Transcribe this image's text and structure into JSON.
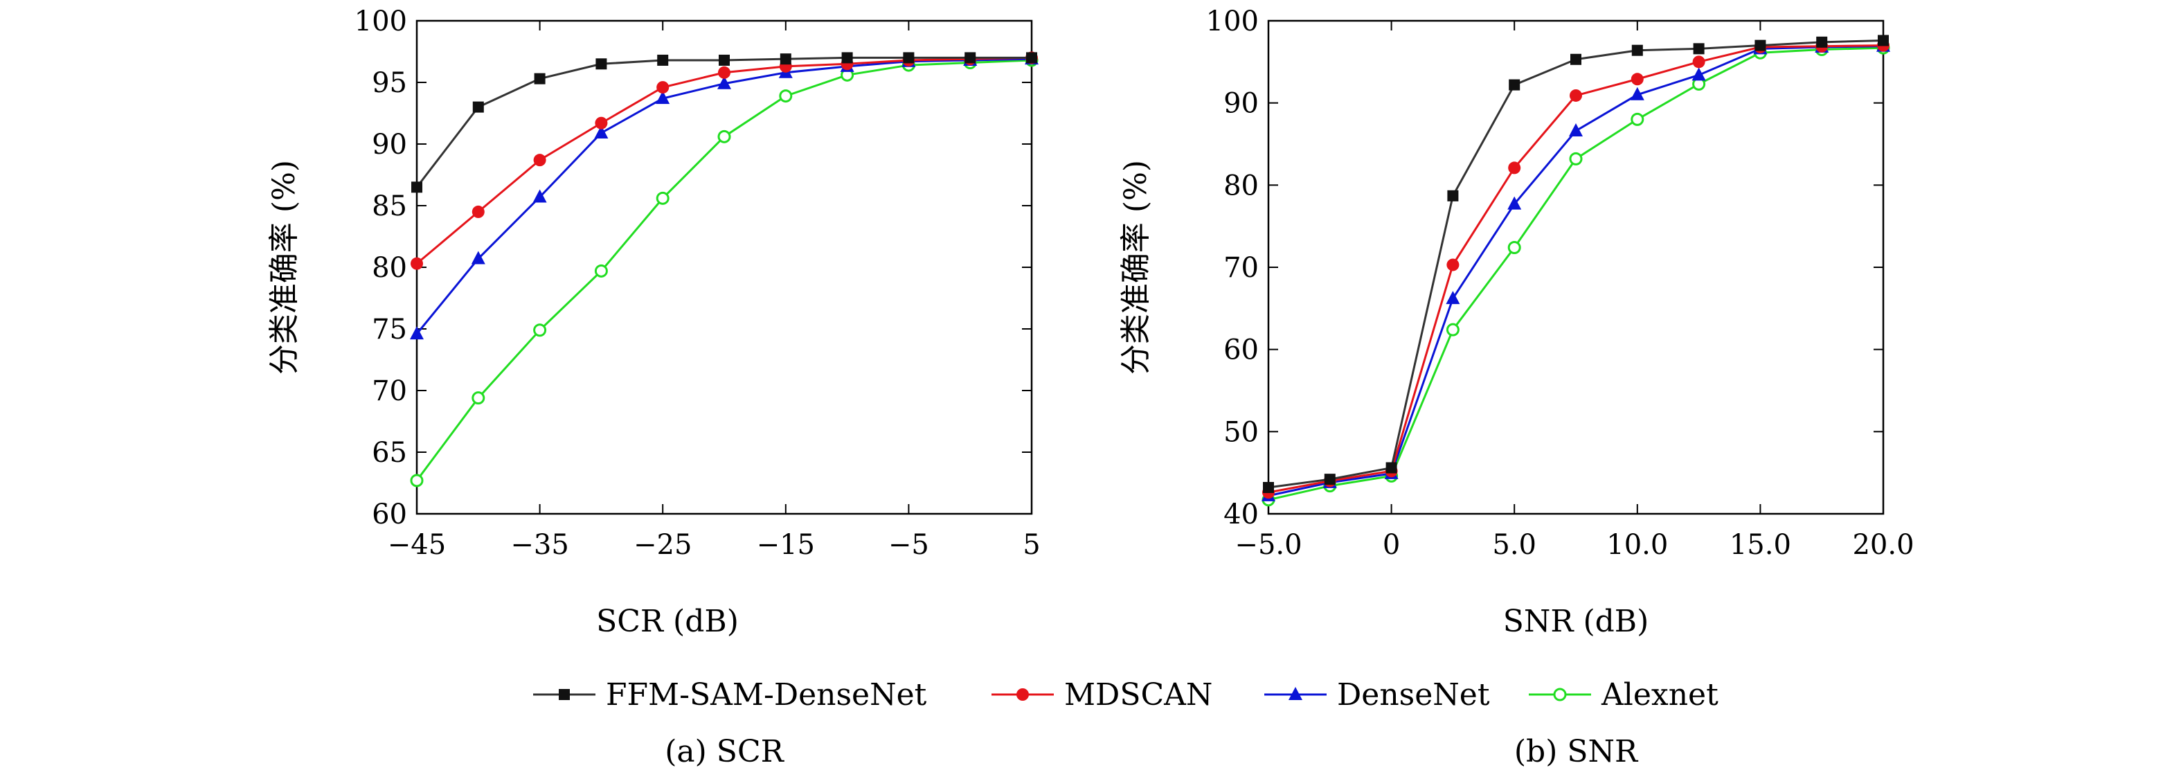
{
  "chart_data": [
    {
      "type": "line",
      "caption": "(a) SCR",
      "xlabel": "SCR (dB)",
      "ylabel": "分类准确率 (%)",
      "xlim": [
        -45,
        5
      ],
      "ylim": [
        60,
        100
      ],
      "xticks": [
        -45,
        -35,
        -25,
        -15,
        -5,
        5
      ],
      "xtick_labels": [
        "−45",
        "−35",
        "−25",
        "−15",
        "−5",
        "5"
      ],
      "yticks": [
        60,
        65,
        70,
        75,
        80,
        85,
        90,
        95,
        100
      ],
      "ytick_labels": [
        "60",
        "65",
        "70",
        "75",
        "80",
        "85",
        "90",
        "95",
        "100"
      ],
      "x": [
        -45,
        -40,
        -35,
        -30,
        -25,
        -20,
        -15,
        -10,
        -5,
        0,
        5
      ],
      "series": [
        {
          "name": "FFM-SAM-DenseNet",
          "values": [
            86.5,
            93.0,
            95.3,
            96.5,
            96.8,
            96.8,
            96.9,
            97.0,
            97.0,
            97.0,
            97.0
          ]
        },
        {
          "name": "MDSCAN",
          "values": [
            80.3,
            84.5,
            88.7,
            91.7,
            94.6,
            95.8,
            96.3,
            96.5,
            96.8,
            96.9,
            97.0
          ]
        },
        {
          "name": "DenseNet",
          "values": [
            74.6,
            80.7,
            85.7,
            90.9,
            93.7,
            94.9,
            95.8,
            96.3,
            96.7,
            96.8,
            96.9
          ]
        },
        {
          "name": "Alexnet",
          "values": [
            62.7,
            69.4,
            74.9,
            79.7,
            85.6,
            90.6,
            93.9,
            95.6,
            96.4,
            96.6,
            96.8
          ]
        }
      ]
    },
    {
      "type": "line",
      "caption": "(b) SNR",
      "xlabel": "SNR (dB)",
      "ylabel": "分类准确率 (%)",
      "xlim": [
        -5,
        20
      ],
      "ylim": [
        40,
        100
      ],
      "xticks": [
        -5,
        0,
        5,
        10,
        15,
        20
      ],
      "xtick_labels": [
        "−5.0",
        "0",
        "5.0",
        "10.0",
        "15.0",
        "20.0"
      ],
      "yticks": [
        40,
        50,
        60,
        70,
        80,
        90,
        100
      ],
      "ytick_labels": [
        "40",
        "50",
        "60",
        "70",
        "80",
        "90",
        "100"
      ],
      "x": [
        -5,
        -2.5,
        0,
        2.5,
        5,
        7.5,
        10,
        12.5,
        15,
        17.5,
        20
      ],
      "series": [
        {
          "name": "FFM-SAM-DenseNet",
          "values": [
            43.2,
            44.2,
            45.6,
            78.7,
            92.2,
            95.3,
            96.4,
            96.6,
            97.0,
            97.4,
            97.6
          ]
        },
        {
          "name": "MDSCAN",
          "values": [
            42.6,
            44.0,
            45.2,
            70.3,
            82.1,
            90.9,
            92.9,
            95.0,
            96.8,
            96.9,
            97.0
          ]
        },
        {
          "name": "DenseNet",
          "values": [
            42.2,
            43.8,
            44.9,
            66.2,
            77.7,
            86.6,
            91.0,
            93.4,
            96.6,
            96.8,
            96.9
          ]
        },
        {
          "name": "Alexnet",
          "values": [
            41.7,
            43.4,
            44.6,
            62.4,
            72.4,
            83.2,
            88.0,
            92.3,
            96.1,
            96.5,
            96.7
          ]
        }
      ]
    }
  ],
  "legend": {
    "position": "bottom-center",
    "entries": [
      {
        "label": "FFM-SAM-DenseNet",
        "color": "#333333",
        "marker": "square-filled"
      },
      {
        "label": "MDSCAN",
        "color": "#e5141a",
        "marker": "circle-filled"
      },
      {
        "label": "DenseNet",
        "color": "#0a14d6",
        "marker": "triangle-filled"
      },
      {
        "label": "Alexnet",
        "color": "#22dd22",
        "marker": "circle-open"
      }
    ]
  }
}
